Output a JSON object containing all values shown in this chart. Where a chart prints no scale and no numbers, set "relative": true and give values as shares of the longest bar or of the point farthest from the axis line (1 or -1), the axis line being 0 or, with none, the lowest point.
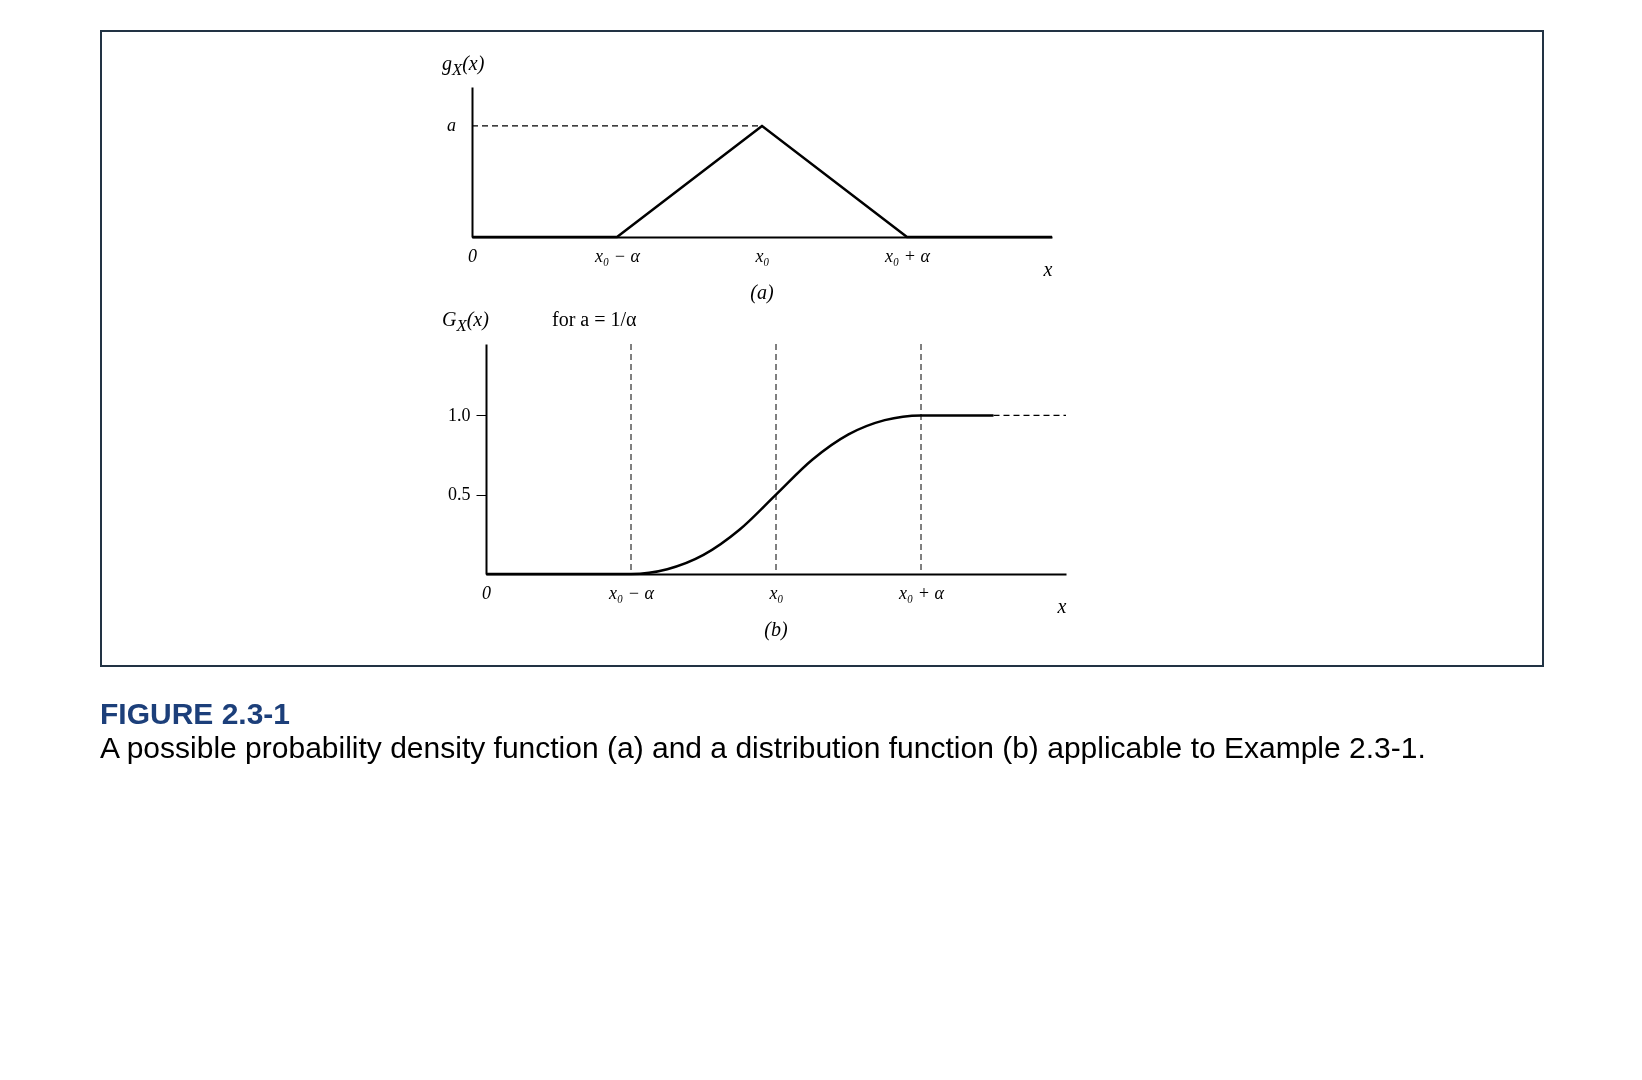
{
  "chart_data": [
    {
      "type": "line",
      "title": "(a)",
      "xlabel": "x",
      "ylabel": "g$_{X}$(x)",
      "relative": true,
      "categories": [
        "0",
        "x₀ − α",
        "x₀",
        "x₀ + α",
        null
      ],
      "grid": false,
      "annotations": [
        {
          "text": "a",
          "x": "0",
          "y": 1
        }
      ],
      "series": [
        {
          "color": "#000000",
          "values": [
            0,
            0,
            1,
            0,
            0
          ]
        },
        {
          "color": "#000000",
          "line_style": "dashed",
          "values": [
            1,
            1,
            1,
            null,
            null
          ]
        }
      ]
    },
    {
      "type": "line",
      "title": "(b)",
      "xlabel": "x",
      "ylabel": "G$_{X}$(x)",
      "annotations": [
        "for a = 1/α",
        "FIGURE 2.3-1",
        "A possible probability density function (a) and a distribution function (b) applicable to Example 2.3-1."
      ],
      "categories": [
        "0",
        null,
        null,
        null,
        "x₀ − α",
        null,
        null,
        null,
        "x₀",
        null,
        null,
        null,
        "x₀ + α",
        null,
        null,
        null,
        null
      ],
      "ylim": [
        0,
        1.45
      ],
      "yticks": [
        0.5,
        {
          "value": 1,
          "label": "1.0"
        }
      ],
      "grid": false,
      "series": [
        {
          "color": "#000000",
          "values": [
            0,
            0,
            0,
            0,
            0,
            0.03,
            0.12,
            0.28,
            0.5,
            0.72,
            0.88,
            0.97,
            1,
            1,
            1,
            null,
            null
          ]
        },
        {
          "color": "#000000",
          "line_style": "dashed",
          "values": [
            null,
            null,
            null,
            null,
            null,
            null,
            null,
            null,
            null,
            null,
            null,
            null,
            null,
            null,
            1,
            1,
            1
          ]
        }
      ],
      "ref_lines": [
        {
          "axis": "x",
          "value": "x₀ − α",
          "line_style": "dashed"
        },
        {
          "axis": "x",
          "value": "x₀",
          "line_style": "dashed"
        },
        {
          "axis": "x",
          "value": "x₀ + α",
          "line_style": "dashed"
        }
      ]
    }
  ]
}
